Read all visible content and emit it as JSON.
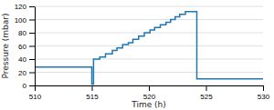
{
  "chart_data": {
    "type": "line",
    "xlabel": "Time (h)",
    "ylabel": "Pressure (mbar)",
    "x": [
      510.0,
      515.0,
      515.0,
      515.15,
      515.15,
      515.7,
      515.7,
      516.2,
      516.2,
      516.8,
      516.8,
      517.2,
      517.2,
      517.7,
      517.7,
      518.2,
      518.2,
      518.6,
      518.6,
      519.1,
      519.1,
      519.6,
      519.6,
      520.1,
      520.1,
      520.5,
      520.5,
      521.0,
      521.0,
      521.5,
      521.5,
      521.9,
      521.9,
      522.3,
      522.3,
      522.7,
      522.7,
      523.2,
      523.2,
      524.2,
      524.2,
      530.0
    ],
    "values": [
      28,
      28,
      2,
      2,
      40,
      40,
      43,
      43,
      48,
      48,
      53,
      53,
      57,
      57,
      62,
      62,
      65,
      65,
      70,
      70,
      75,
      75,
      80,
      80,
      84,
      84,
      88,
      88,
      92,
      92,
      96,
      96,
      100,
      100,
      104,
      104,
      108,
      108,
      112,
      112,
      10,
      10
    ],
    "xlim": [
      510,
      530
    ],
    "ylim": [
      0,
      120
    ],
    "xticks": [
      510,
      515,
      520,
      525,
      530
    ],
    "yticks": [
      0,
      20,
      40,
      60,
      80,
      100,
      120
    ],
    "grid": true
  }
}
